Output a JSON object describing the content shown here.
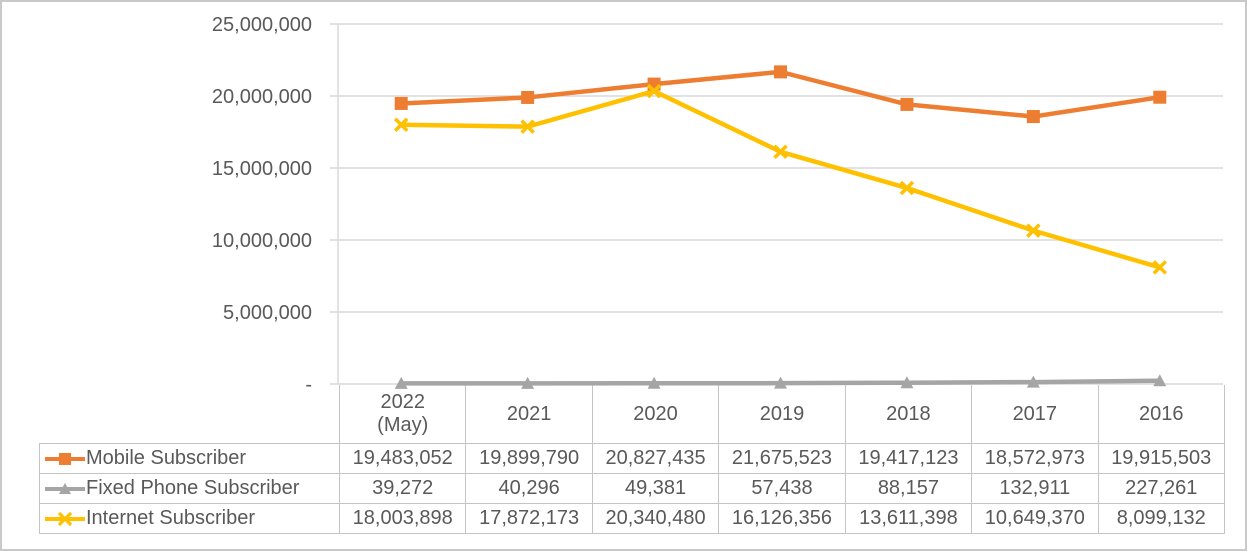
{
  "chart_data": {
    "type": "line",
    "title": "",
    "xlabel": "",
    "ylabel": "",
    "categories": [
      "2022\n(May)",
      "2021",
      "2020",
      "2019",
      "2018",
      "2017",
      "2016"
    ],
    "series": [
      {
        "name": "Mobile Subscriber",
        "color": "#ED7D31",
        "marker": "square",
        "values": [
          19483052,
          19899790,
          20827435,
          21675523,
          19417123,
          18572973,
          19915503
        ],
        "values_formatted": [
          "19,483,052",
          "19,899,790",
          "20,827,435",
          "21,675,523",
          "19,417,123",
          "18,572,973",
          "19,915,503"
        ]
      },
      {
        "name": "Fixed Phone Subscriber",
        "color": "#A5A5A5",
        "marker": "triangle",
        "values": [
          39272,
          40296,
          49381,
          57438,
          88157,
          132911,
          227261
        ],
        "values_formatted": [
          "39,272",
          "40,296",
          "49,381",
          "57,438",
          "88,157",
          "132,911",
          "227,261"
        ]
      },
      {
        "name": "Internet Subscriber",
        "color": "#FFC000",
        "marker": "x",
        "values": [
          18003898,
          17872173,
          20340480,
          16126356,
          13611398,
          10649370,
          8099132
        ],
        "values_formatted": [
          "18,003,898",
          "17,872,173",
          "20,340,480",
          "16,126,356",
          "13,611,398",
          "10,649,370",
          "8,099,132"
        ]
      }
    ],
    "y_axis": {
      "min": 0,
      "max": 25000000,
      "tick_interval": 5000000,
      "tick_labels_top_to_bottom": [
        "25,000,000",
        "20,000,000",
        "15,000,000",
        "10,000,000",
        "5,000,000",
        "-"
      ]
    },
    "grid": true,
    "legend_position": "data-table-left-column",
    "colors": {
      "text": "#595959",
      "gridline": "#D9D9D9",
      "table_border": "#C4C4C4"
    }
  }
}
